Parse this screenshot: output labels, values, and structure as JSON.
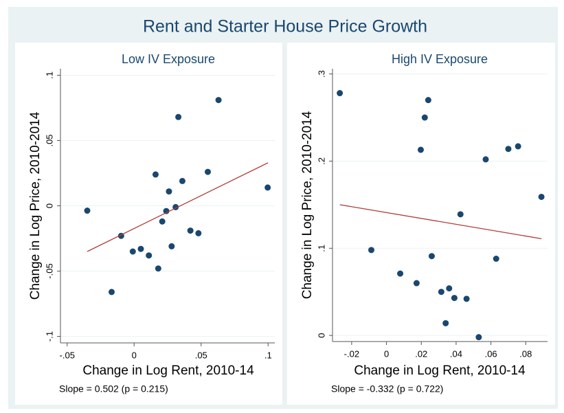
{
  "title": "Rent and Starter House Price Growth",
  "chart_data": [
    {
      "type": "scatter",
      "title": "Low IV Exposure",
      "x_label": "Change in Log Rent, 2010-14",
      "y_label": "Change in Log Price, 2010-2014",
      "annotation": "Slope = 0.502 (p = 0.215)",
      "x": [
        -0.035,
        -0.0168,
        -0.0097,
        -0.001,
        0.005,
        0.011,
        0.016,
        0.018,
        0.021,
        0.024,
        0.026,
        0.028,
        0.031,
        0.033,
        0.036,
        0.042,
        0.048,
        0.055,
        0.063,
        0.0997
      ],
      "values": [
        -0.0037,
        -0.066,
        -0.023,
        -0.035,
        -0.033,
        -0.038,
        0.024,
        -0.048,
        -0.012,
        -0.004,
        0.011,
        -0.031,
        -0.001,
        0.068,
        0.019,
        -0.019,
        -0.021,
        0.026,
        0.081,
        0.014
      ],
      "color": "#1a476f",
      "fit": {
        "x": [
          -0.035,
          0.1
        ],
        "values": [
          -0.035,
          0.033
        ],
        "color": "#b03a36"
      },
      "xlim": [
        -0.055,
        0.105
      ],
      "ylim": [
        -0.105,
        0.105
      ],
      "xticks": [
        {
          "value": -0.05,
          "label": "-.05"
        },
        0,
        {
          "value": 0.05,
          "label": ".05"
        },
        {
          "value": 0.1,
          "label": ".1"
        }
      ],
      "yticks": [
        {
          "value": -0.1,
          "label": "-.1"
        },
        {
          "value": -0.05,
          "label": "-.05"
        },
        0,
        {
          "value": 0.05,
          "label": ".05"
        },
        {
          "value": 0.1,
          "label": ".1"
        }
      ],
      "grid": true
    },
    {
      "type": "scatter",
      "title": "High IV Exposure",
      "x_label": "Change in Log Rent, 2010-14",
      "y_label": "Change in Log Price, 2010-2014",
      "annotation": "Slope = -0.332 (p = 0.722)",
      "x": [
        -0.0268,
        -0.0087,
        0.0079,
        0.0173,
        0.0197,
        0.022,
        0.024,
        0.026,
        0.0315,
        0.036,
        0.034,
        0.039,
        0.0425,
        0.046,
        0.053,
        0.057,
        0.063,
        0.07,
        0.0756,
        0.089
      ],
      "values": [
        0.278,
        0.098,
        0.071,
        0.06,
        0.213,
        0.25,
        0.27,
        0.091,
        0.05,
        0.054,
        0.014,
        0.043,
        0.139,
        0.042,
        -0.002,
        0.202,
        0.088,
        0.214,
        0.217,
        0.159
      ],
      "color": "#1a476f",
      "fit": {
        "x": [
          -0.0268,
          0.089
        ],
        "values": [
          0.15,
          0.111
        ],
        "color": "#b03a36"
      },
      "xlim": [
        -0.031,
        0.0925
      ],
      "ylim": [
        -0.007,
        0.306
      ],
      "xticks": [
        {
          "value": -0.02,
          "label": "-.02"
        },
        0,
        {
          "value": 0.02,
          "label": ".02"
        },
        {
          "value": 0.04,
          "label": ".04"
        },
        {
          "value": 0.06,
          "label": ".06"
        },
        {
          "value": 0.08,
          "label": ".08"
        }
      ],
      "yticks": [
        0,
        {
          "value": 0.1,
          "label": ".1"
        },
        {
          "value": 0.2,
          "label": ".2"
        },
        {
          "value": 0.3,
          "label": ".3"
        }
      ],
      "grid": true
    }
  ]
}
